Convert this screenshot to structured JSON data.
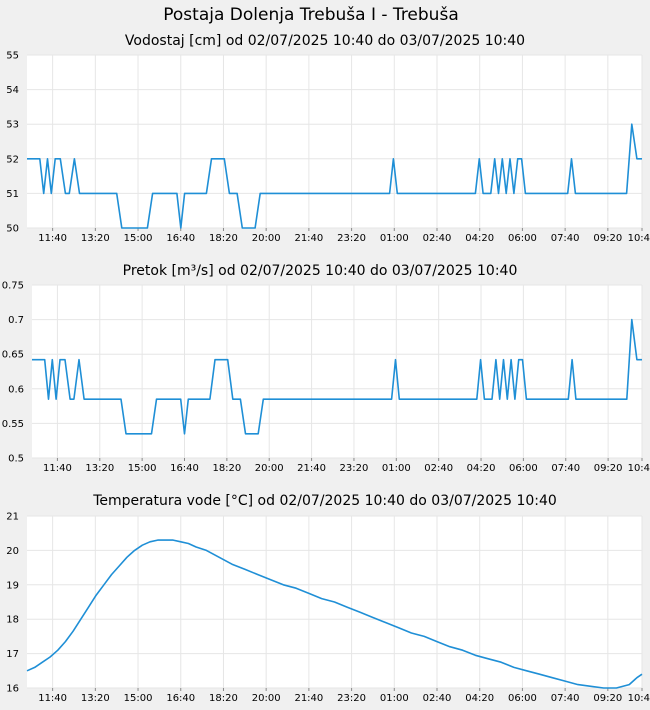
{
  "page": {
    "title": "Postaja Dolenja Trebuša I - Trebuša"
  },
  "colors": {
    "background": "#f0f0f0",
    "plot_bg": "#ffffff",
    "grid": "#e6e6e6",
    "line": "#1f8fd6"
  },
  "chart_data": [
    {
      "type": "line",
      "title": "Vodostaj [cm] od 02/07/2025 10:40 do 03/07/2025 10:40",
      "ylim": [
        50,
        55
      ],
      "yticks": [
        "50",
        "51",
        "52",
        "53",
        "54",
        "55"
      ],
      "xticks": [
        "11:40",
        "13:20",
        "15:00",
        "16:40",
        "18:20",
        "20:00",
        "21:40",
        "23:20",
        "01:00",
        "02:40",
        "04:20",
        "06:00",
        "07:40",
        "09:20",
        "10:40"
      ],
      "xtick_hours": [
        1,
        2.667,
        4.333,
        6,
        7.667,
        9.333,
        11,
        12.667,
        14.333,
        16,
        17.667,
        19.333,
        21,
        22.667,
        24
      ],
      "grid": true,
      "series": [
        {
          "x": [
            0,
            0.5,
            0.65,
            0.8,
            0.95,
            1.1,
            1.3,
            1.5,
            1.65,
            1.85,
            2.05,
            2.2,
            2.35,
            3.5,
            3.7,
            4.7,
            4.9,
            5.85,
            6.0,
            6.15,
            6.3,
            7.0,
            7.2,
            7.7,
            7.9,
            8.2,
            8.4,
            8.9,
            9.1,
            10.0,
            10.2,
            14.15,
            14.3,
            14.45,
            17.5,
            17.65,
            17.8,
            18.1,
            18.25,
            18.4,
            18.55,
            18.7,
            18.85,
            19.0,
            19.15,
            19.3,
            19.45,
            19.6,
            19.75,
            19.9,
            20.05,
            21.1,
            21.25,
            21.4,
            23.4,
            23.6,
            23.8,
            24.0
          ],
          "y": [
            52,
            52,
            51,
            52,
            51,
            52,
            52,
            51,
            51,
            52,
            51,
            51,
            51,
            51,
            50,
            50,
            51,
            51,
            50,
            51,
            51,
            51,
            52,
            52,
            51,
            51,
            50,
            50,
            51,
            51,
            51,
            51,
            52,
            51,
            51,
            52,
            51,
            51,
            52,
            51,
            52,
            51,
            52,
            51,
            52,
            52,
            51,
            51,
            51,
            51,
            51,
            51,
            52,
            51,
            51,
            53,
            52,
            52
          ]
        }
      ]
    },
    {
      "type": "line",
      "title": "Pretok [m³/s] od 02/07/2025 10:40 do 03/07/2025 10:40",
      "ylim": [
        0.5,
        0.75
      ],
      "yticks": [
        "0.5",
        "0.55",
        "0.6",
        "0.65",
        "0.7",
        "0.75"
      ],
      "xticks": [
        "11:40",
        "13:20",
        "15:00",
        "16:40",
        "18:20",
        "20:00",
        "21:40",
        "23:20",
        "01:00",
        "02:40",
        "04:20",
        "06:00",
        "07:40",
        "09:20",
        "10:40"
      ],
      "xtick_hours": [
        1,
        2.667,
        4.333,
        6,
        7.667,
        9.333,
        11,
        12.667,
        14.333,
        16,
        17.667,
        19.333,
        21,
        22.667,
        24
      ],
      "grid": true,
      "series": [
        {
          "x": [
            0,
            0.5,
            0.65,
            0.8,
            0.95,
            1.1,
            1.3,
            1.5,
            1.65,
            1.85,
            2.05,
            2.2,
            2.35,
            3.5,
            3.7,
            4.7,
            4.9,
            5.85,
            6.0,
            6.15,
            6.3,
            7.0,
            7.2,
            7.7,
            7.9,
            8.2,
            8.4,
            8.9,
            9.1,
            10.0,
            10.2,
            14.15,
            14.3,
            14.45,
            17.5,
            17.65,
            17.8,
            18.1,
            18.25,
            18.4,
            18.55,
            18.7,
            18.85,
            19.0,
            19.15,
            19.3,
            19.45,
            19.6,
            19.75,
            19.9,
            20.05,
            21.1,
            21.25,
            21.4,
            23.4,
            23.6,
            23.8,
            24.0
          ],
          "y": [
            0.642,
            0.642,
            0.585,
            0.642,
            0.585,
            0.642,
            0.642,
            0.585,
            0.585,
            0.642,
            0.585,
            0.585,
            0.585,
            0.585,
            0.535,
            0.535,
            0.585,
            0.585,
            0.535,
            0.585,
            0.585,
            0.585,
            0.642,
            0.642,
            0.585,
            0.585,
            0.535,
            0.535,
            0.585,
            0.585,
            0.585,
            0.585,
            0.642,
            0.585,
            0.585,
            0.642,
            0.585,
            0.585,
            0.642,
            0.585,
            0.642,
            0.585,
            0.642,
            0.585,
            0.642,
            0.642,
            0.585,
            0.585,
            0.585,
            0.585,
            0.585,
            0.585,
            0.642,
            0.585,
            0.585,
            0.7,
            0.642,
            0.642
          ]
        }
      ]
    },
    {
      "type": "line",
      "title": "Temperatura vode [°C] od 02/07/2025 10:40 do 03/07/2025 10:40",
      "ylim": [
        16,
        21
      ],
      "yticks": [
        "16",
        "17",
        "18",
        "19",
        "20",
        "21"
      ],
      "xticks": [
        "11:40",
        "13:20",
        "15:00",
        "16:40",
        "18:20",
        "20:00",
        "21:40",
        "23:20",
        "01:00",
        "02:40",
        "04:20",
        "06:00",
        "07:40",
        "09:20",
        "10:40"
      ],
      "xtick_hours": [
        1,
        2.667,
        4.333,
        6,
        7.667,
        9.333,
        11,
        12.667,
        14.333,
        16,
        17.667,
        19.333,
        21,
        22.667,
        24
      ],
      "grid": true,
      "series": [
        {
          "x": [
            0,
            0.3,
            0.6,
            0.9,
            1.2,
            1.5,
            1.8,
            2.1,
            2.4,
            2.7,
            3.0,
            3.3,
            3.6,
            3.9,
            4.2,
            4.5,
            4.8,
            5.1,
            5.4,
            5.7,
            6.0,
            6.3,
            6.6,
            7.0,
            7.5,
            8.0,
            8.5,
            9.0,
            9.5,
            10.0,
            10.5,
            11.0,
            11.5,
            12.0,
            12.5,
            13.0,
            13.5,
            14.0,
            14.5,
            15.0,
            15.5,
            16.0,
            16.5,
            17.0,
            17.5,
            18.0,
            18.5,
            19.0,
            19.5,
            20.0,
            20.5,
            21.0,
            21.5,
            22.0,
            22.5,
            23.0,
            23.5,
            23.8,
            24.0
          ],
          "y": [
            16.5,
            16.6,
            16.75,
            16.9,
            17.1,
            17.35,
            17.65,
            18.0,
            18.35,
            18.7,
            19.0,
            19.3,
            19.55,
            19.8,
            20.0,
            20.15,
            20.25,
            20.3,
            20.3,
            20.3,
            20.25,
            20.2,
            20.1,
            20.0,
            19.8,
            19.6,
            19.45,
            19.3,
            19.15,
            19.0,
            18.9,
            18.75,
            18.6,
            18.5,
            18.35,
            18.2,
            18.05,
            17.9,
            17.75,
            17.6,
            17.5,
            17.35,
            17.2,
            17.1,
            16.95,
            16.85,
            16.75,
            16.6,
            16.5,
            16.4,
            16.3,
            16.2,
            16.1,
            16.05,
            16.0,
            16.0,
            16.1,
            16.3,
            16.4
          ]
        }
      ]
    }
  ]
}
